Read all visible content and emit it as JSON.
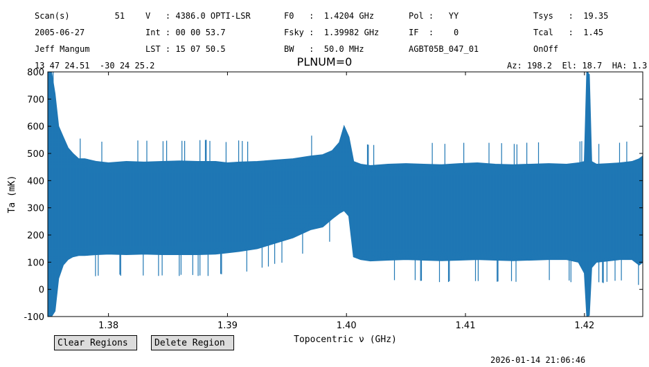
{
  "header": {
    "col1": [
      "Scan(s)         51",
      "2005-06-27",
      "Jeff Mangum",
      "13 47 24.51  -30 24 25.2"
    ],
    "col2": [
      "V   : 4386.0 OPTI-LSR",
      "Int : 00 00 53.7",
      "LST : 15 07 50.5"
    ],
    "col3": [
      "F0   :  1.4204 GHz",
      "Fsky :  1.39982 GHz",
      "BW   :  50.0 MHz"
    ],
    "col4": [
      "Pol :   YY",
      "IF  :    0",
      "AGBT05B_047_01"
    ],
    "col5": [
      "Tsys   :  19.35",
      "Tcal   :  1.45",
      "OnOff"
    ],
    "azel": "Az: 198.2  El: 18.7  HA: 1.3"
  },
  "buttons": {
    "clear": "Clear Regions",
    "delete": "Delete Region"
  },
  "timestamp": "2026-01-14 21:06:46",
  "chart_data": {
    "type": "line",
    "title": "PLNUM=0",
    "xlabel": "Topocentric ν (GHz)",
    "ylabel": "Ta (mK)",
    "xlim": [
      1.3749,
      1.4249
    ],
    "ylim": [
      -100,
      800
    ],
    "xticks": [
      1.38,
      1.39,
      1.4,
      1.41,
      1.42
    ],
    "xtick_labels": [
      "1.38",
      "1.39",
      "1.40",
      "1.41",
      "1.42"
    ],
    "yticks": [
      -100,
      0,
      100,
      200,
      300,
      400,
      500,
      600,
      700,
      800
    ],
    "color": "#1f77b4",
    "series": [
      {
        "x": [
          1.3749,
          1.3752,
          1.3755,
          1.3758,
          1.3762,
          1.3766,
          1.377,
          1.3775,
          1.378,
          1.379,
          1.38,
          1.3815,
          1.383,
          1.3845,
          1.386,
          1.3875,
          1.389,
          1.39,
          1.391,
          1.3925,
          1.394,
          1.3955,
          1.397,
          1.398,
          1.3988,
          1.3994,
          1.3998,
          1.4002,
          1.4006,
          1.4012,
          1.402,
          1.4035,
          1.405,
          1.4065,
          1.408,
          1.4095,
          1.411,
          1.4125,
          1.414,
          1.4155,
          1.417,
          1.4185,
          1.4195,
          1.42,
          1.4202,
          1.4204,
          1.4206,
          1.421,
          1.422,
          1.423,
          1.424,
          1.4246,
          1.4249
        ],
        "upper": [
          800,
          800,
          720,
          600,
          560,
          520,
          500,
          480,
          480,
          470,
          465,
          470,
          468,
          470,
          472,
          470,
          470,
          465,
          468,
          470,
          475,
          480,
          490,
          495,
          510,
          540,
          600,
          560,
          470,
          460,
          455,
          460,
          462,
          460,
          458,
          462,
          465,
          460,
          458,
          460,
          462,
          460,
          465,
          470,
          800,
          790,
          470,
          460,
          462,
          465,
          470,
          480,
          490
        ],
        "lower": [
          -100,
          -100,
          -80,
          40,
          90,
          110,
          120,
          125,
          125,
          128,
          130,
          128,
          130,
          128,
          128,
          128,
          130,
          135,
          140,
          150,
          170,
          190,
          220,
          230,
          260,
          280,
          290,
          270,
          120,
          110,
          105,
          108,
          110,
          108,
          106,
          108,
          110,
          108,
          106,
          108,
          110,
          110,
          100,
          60,
          -100,
          -95,
          80,
          100,
          105,
          110,
          110,
          90,
          100
        ]
      }
    ]
  }
}
